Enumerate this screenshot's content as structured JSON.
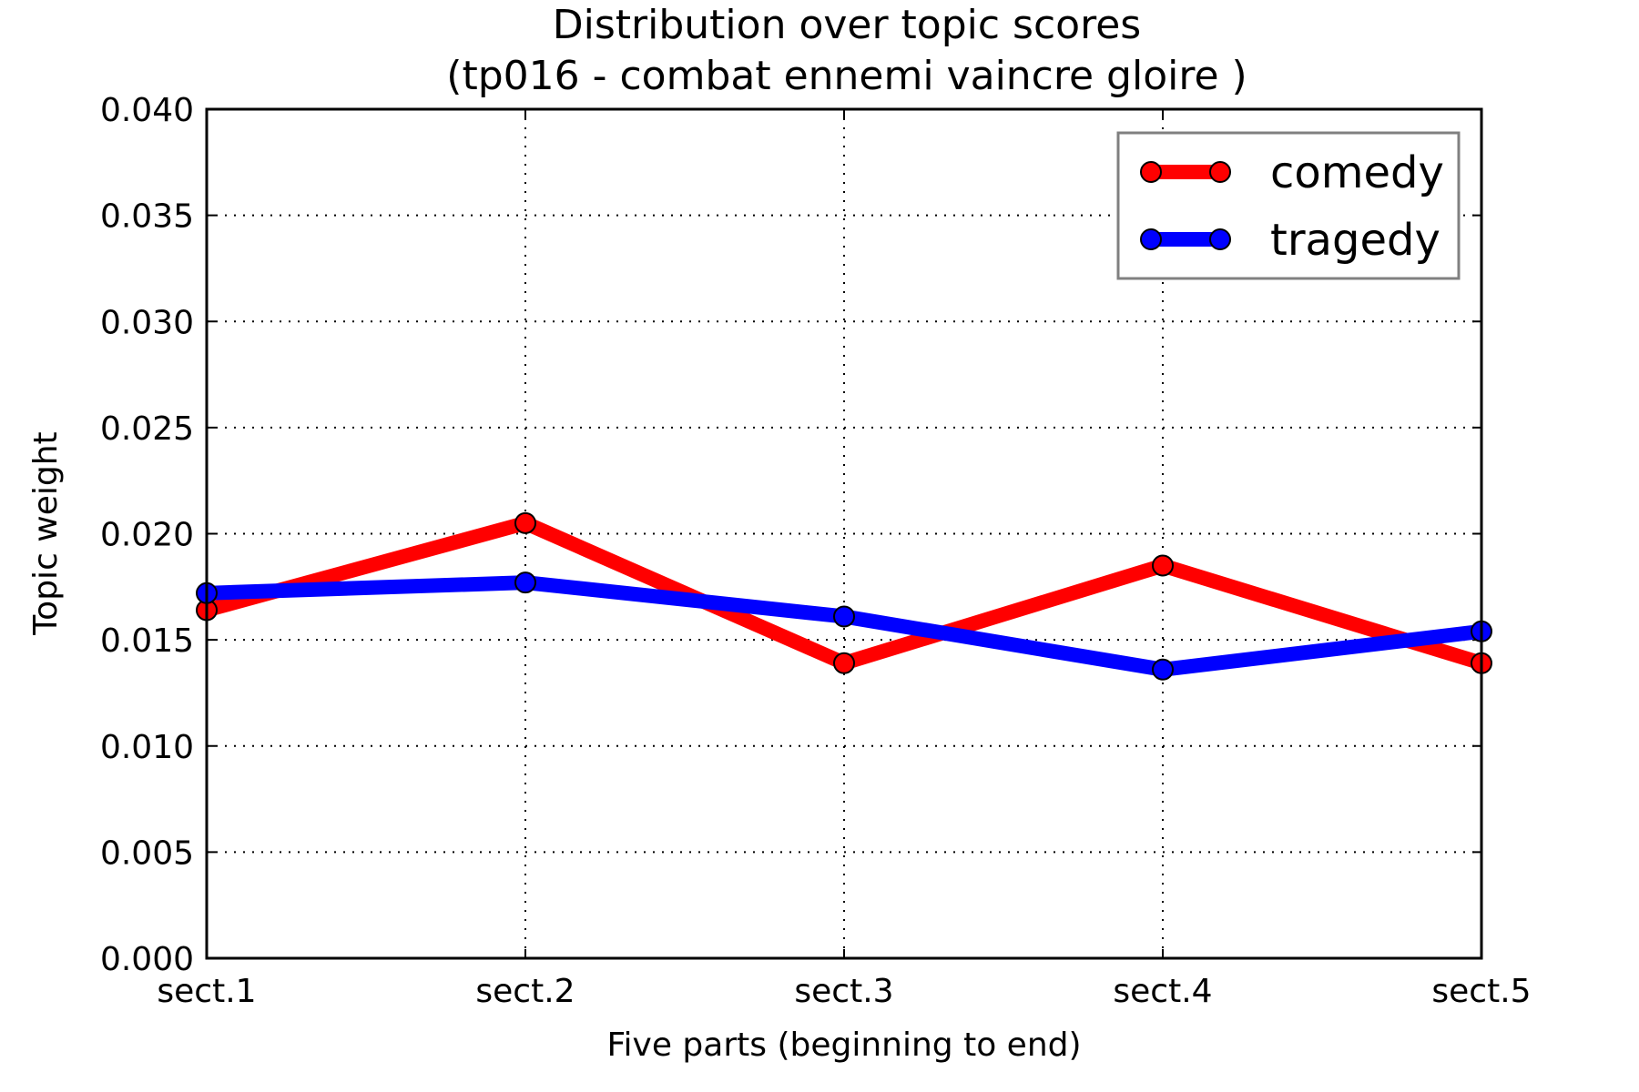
{
  "chart_data": {
    "type": "line",
    "title": "Distribution over topic scores",
    "subtitle": "(tp016 - combat ennemi vaincre gloire )",
    "xlabel": "Five parts (beginning to end)",
    "ylabel": "Topic weight",
    "categories": [
      "sect.1",
      "sect.2",
      "sect.3",
      "sect.4",
      "sect.5"
    ],
    "ylim": [
      0,
      0.04
    ],
    "yticks": [
      "0.000",
      "0.005",
      "0.010",
      "0.015",
      "0.020",
      "0.025",
      "0.030",
      "0.035",
      "0.040"
    ],
    "grid": true,
    "legend_position": "top-right",
    "series": [
      {
        "name": "comedy",
        "color": "#ff0000",
        "values": [
          0.0164,
          0.0205,
          0.0139,
          0.0185,
          0.0139
        ]
      },
      {
        "name": "tragedy",
        "color": "#0000ff",
        "values": [
          0.0172,
          0.0177,
          0.0161,
          0.0136,
          0.0154
        ]
      }
    ]
  }
}
